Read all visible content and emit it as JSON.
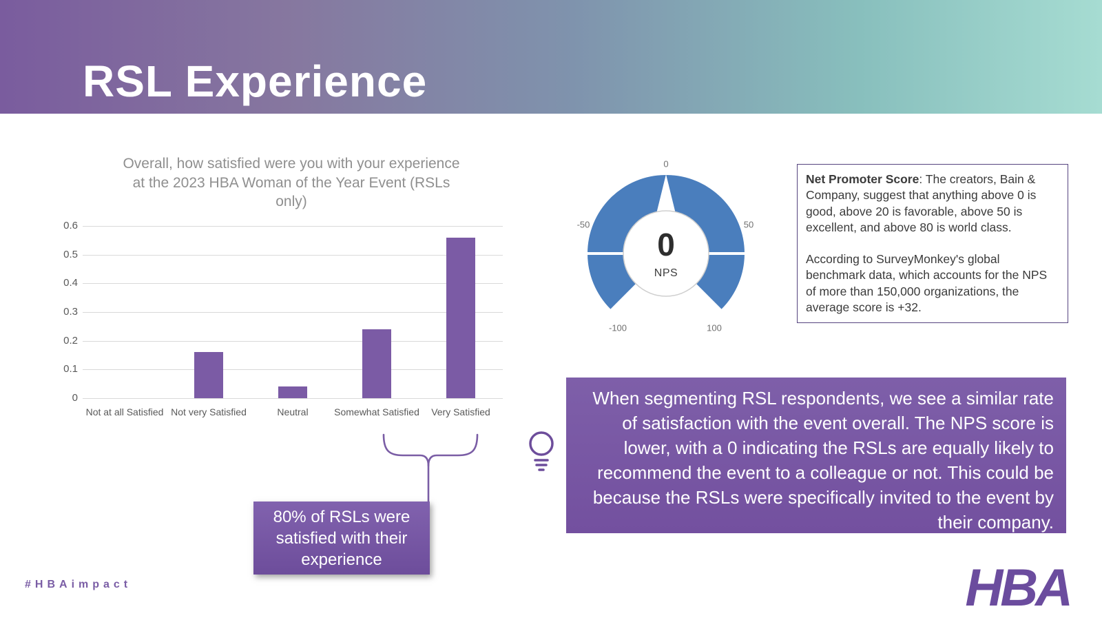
{
  "slide": {
    "title": "RSL Experience",
    "hashtag": "#HBAimpact",
    "logo": "HBA"
  },
  "colors": {
    "bar_purple": "#7b5ba5",
    "accent_purple": "#6d4d9b",
    "gauge_blue": "#4a7ebd",
    "header_gradient_left": "#7a5c9e",
    "header_gradient_right": "#a6dcd2"
  },
  "chart_data": [
    {
      "type": "bar",
      "title": "Overall, how satisfied were you with your experience at the 2023 HBA Woman of the Year Event (RSLs only)",
      "categories": [
        "Not at all Satisfied",
        "Not very Satisfied",
        "Neutral",
        "Somewhat Satisfied",
        "Very Satisfied"
      ],
      "values": [
        0,
        0.16,
        0.04,
        0.24,
        0.56
      ],
      "xlabel": "",
      "ylabel": "",
      "ylim": [
        0,
        0.6
      ],
      "ytick_step": 0.1,
      "grid": true,
      "legend": false,
      "bar_color": "#7b5ba5"
    },
    {
      "type": "gauge",
      "value": 0,
      "label": "NPS",
      "min": -100,
      "max": 100,
      "ticks": [
        -100,
        -50,
        0,
        50,
        100
      ],
      "color": "#4a7ebd"
    }
  ],
  "callout": {
    "text": "80% of RSLs were satisfied with their experience"
  },
  "nps_note": {
    "bold_lead": "Net Promoter Score",
    "para1_rest": ": The creators, Bain & Company, suggest that anything above 0 is good, above 20 is favorable, above 50 is excellent, and above 80 is world class.",
    "para2": "According to SurveyMonkey's global benchmark data, which accounts for the NPS of more than 150,000 organizations, the average score is +32."
  },
  "insight": {
    "text": "When segmenting RSL respondents, we see a similar rate of satisfaction with the event overall. The NPS score is lower, with a 0 indicating the RSLs are equally likely to recommend the event to a colleague or not. This could be because the RSLs were specifically invited to the event by their company."
  }
}
